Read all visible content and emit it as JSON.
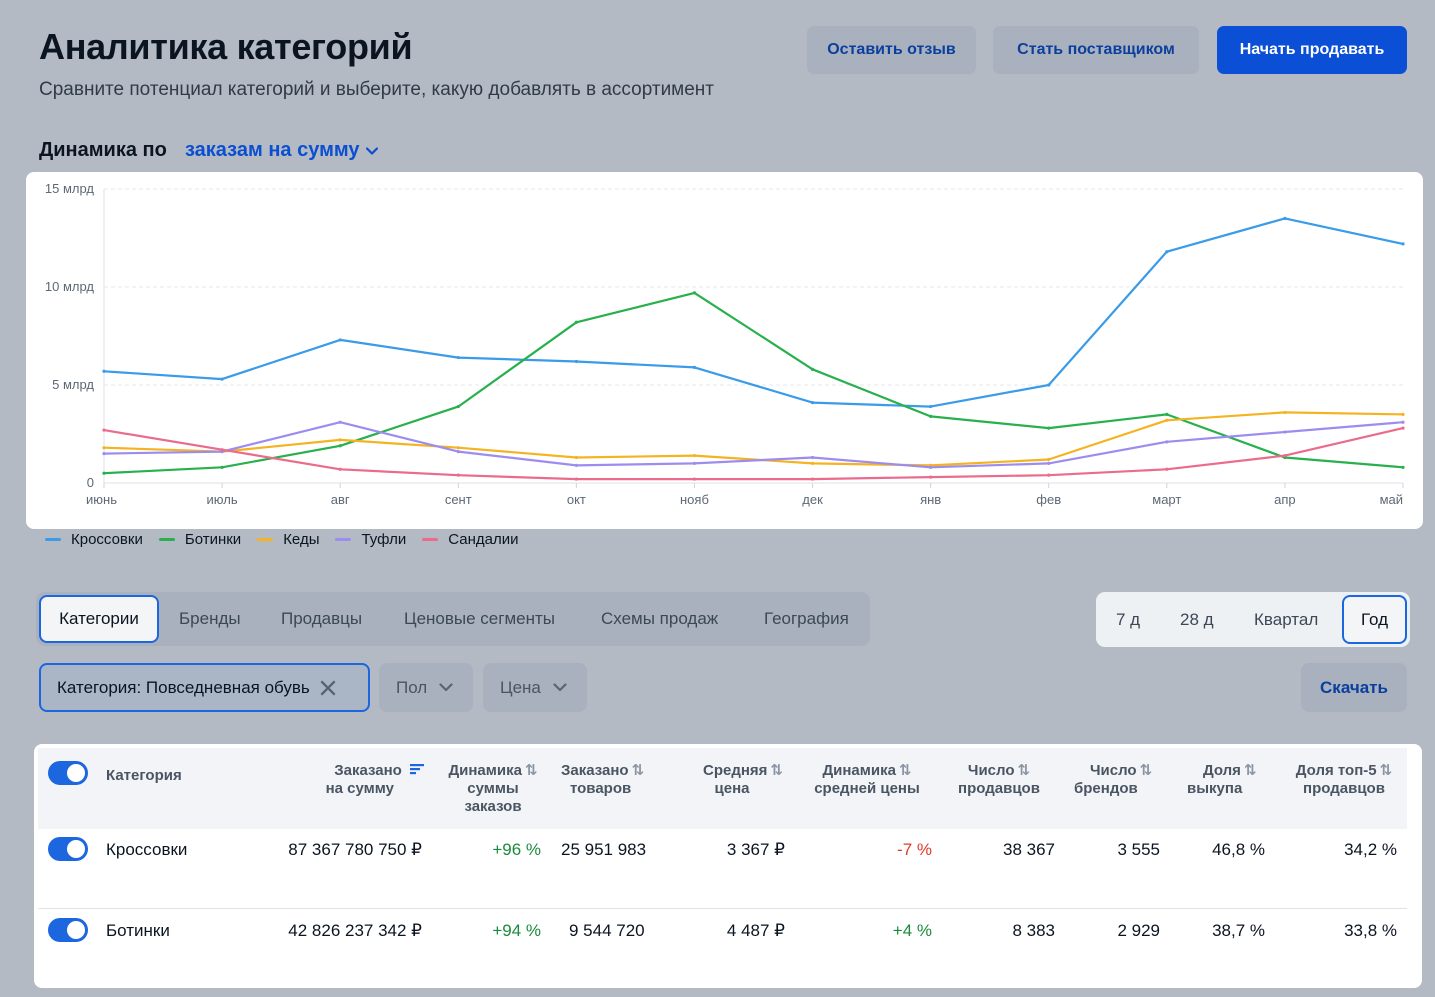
{
  "header": {
    "title": "Аналитика категорий",
    "subtitle": "Сравните потенциал категорий и выберите, какую добавлять в ассортимент",
    "feedback_label": "Оставить отзыв",
    "supplier_label": "Стать поставщиком",
    "sell_label": "Начать продавать"
  },
  "dynamics": {
    "label": "Динамика по",
    "metric": "заказам на сумму"
  },
  "colors": {
    "accent": "#1c66e0",
    "primary_button": "#0a4fd6",
    "positive": "#1a8b3c",
    "negative": "#e0392b"
  },
  "chart_data": {
    "type": "line",
    "categories": [
      "июнь",
      "июль",
      "авг",
      "сент",
      "окт",
      "нояб",
      "дек",
      "янв",
      "фев",
      "март",
      "апр",
      "май"
    ],
    "y_ticks": [
      "0",
      "5 млрд",
      "10 млрд",
      "15 млрд"
    ],
    "ylim": [
      0,
      15
    ],
    "unit": "млрд",
    "grid": true,
    "legend_position": "bottom-left",
    "series": [
      {
        "name": "Кроссовки",
        "color": "#3a9be8",
        "values": [
          5.7,
          5.3,
          7.3,
          6.4,
          6.2,
          5.9,
          4.1,
          3.9,
          5.0,
          11.8,
          13.5,
          12.2
        ]
      },
      {
        "name": "Ботинки",
        "color": "#27b04c",
        "values": [
          0.5,
          0.8,
          1.9,
          3.9,
          8.2,
          9.7,
          5.8,
          3.4,
          2.8,
          3.5,
          1.3,
          0.8
        ]
      },
      {
        "name": "Кеды",
        "color": "#f5b321",
        "values": [
          1.8,
          1.6,
          2.2,
          1.8,
          1.3,
          1.4,
          1.0,
          0.9,
          1.2,
          3.2,
          3.6,
          3.5
        ]
      },
      {
        "name": "Туфли",
        "color": "#9d8cf0",
        "values": [
          1.5,
          1.6,
          3.1,
          1.6,
          0.9,
          1.0,
          1.3,
          0.8,
          1.0,
          2.1,
          2.6,
          3.1
        ]
      },
      {
        "name": "Сандалии",
        "color": "#ea6b8c",
        "values": [
          2.7,
          1.7,
          0.7,
          0.4,
          0.2,
          0.2,
          0.2,
          0.3,
          0.4,
          0.7,
          1.4,
          2.8
        ]
      }
    ]
  },
  "tabs": {
    "items": [
      "Категории",
      "Бренды",
      "Продавцы",
      "Ценовые сегменты",
      "Схемы продаж",
      "География"
    ],
    "active": "Категории"
  },
  "periods": {
    "items": [
      "7 д",
      "28 д",
      "Квартал",
      "Год"
    ],
    "active": "Год"
  },
  "filters": {
    "category_chip": "Категория: Повседневная обувь",
    "gender": "Пол",
    "price": "Цена",
    "download_label": "Скачать"
  },
  "table": {
    "headers": {
      "category": "Категория",
      "ordered_sum": [
        "Заказано",
        "на сумму"
      ],
      "sum_dynamics": [
        "Динамика",
        "суммы",
        "заказов"
      ],
      "ordered_items": [
        "Заказано",
        "товаров"
      ],
      "avg_price": [
        "Средняя",
        "цена"
      ],
      "avg_price_dynamics": [
        "Динамика",
        "средней цены"
      ],
      "sellers": [
        "Число",
        "продавцов"
      ],
      "brands": [
        "Число",
        "брендов"
      ],
      "buyout": [
        "Доля",
        "выкупа"
      ],
      "top5": [
        "Доля топ-5",
        "продавцов"
      ]
    },
    "rows": [
      {
        "name": "Кроссовки",
        "ordered_sum": "87 367 780 750 ₽",
        "sum_dynamics": "+96 %",
        "ordered_items": "25 951 983",
        "avg_price": "3 367 ₽",
        "avg_price_dynamics": "-7 %",
        "sellers": "38 367",
        "brands": "3 555",
        "buyout": "46,8 %",
        "top5": "34,2 %"
      },
      {
        "name": "Ботинки",
        "ordered_sum": "42 826 237 342 ₽",
        "sum_dynamics": "+94 %",
        "ordered_items": "9 544 720",
        "avg_price": "4 487 ₽",
        "avg_price_dynamics": "+4 %",
        "sellers": "8 383",
        "brands": "2 929",
        "buyout": "38,7 %",
        "top5": "33,8 %"
      }
    ]
  }
}
